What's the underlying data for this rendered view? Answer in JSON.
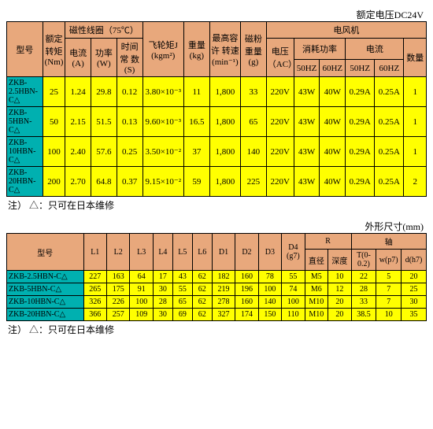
{
  "labels": {
    "rated_voltage": "额定电压DC24V",
    "dims_title": "外形尺寸(mm)",
    "note1": "注） △：只可在日本维修",
    "note2": "注） △：只可在日本维修"
  },
  "t1": {
    "h": {
      "model": "型号",
      "torque": "额定 转矩 (Nm)",
      "coil": "磁性线圈（75℃）",
      "current": "电流 (A)",
      "power": "功率 (W)",
      "tc": "时间常 数 (S)",
      "flywheel": "飞轮矩J (kgm²)",
      "weight": "重量 (kg)",
      "maxspeed": "最高容 许 转速 (min⁻¹)",
      "powder": "磁粉 重量 (g)",
      "fan": "电风机",
      "voltage": "电压 （AC）",
      "pcons": "消耗功率",
      "fcurrent": "电流",
      "hz50": "50HZ",
      "hz60": "60HZ",
      "qty": "数量"
    },
    "rows": [
      {
        "model": "ZKB-2.5HBN-C△",
        "torque": "25",
        "cur": "1.24",
        "pow": "29.8",
        "tc": "0.12",
        "fw": "3.80×10⁻³",
        "wt": "11",
        "speed": "1,800",
        "pd": "33",
        "v": "220V",
        "p50": "43W",
        "p60": "40W",
        "c50": "0.29A",
        "c60": "0.25A",
        "q": "1"
      },
      {
        "model": "ZKB-5HBN-C△",
        "torque": "50",
        "cur": "2.15",
        "pow": "51.5",
        "tc": "0.13",
        "fw": "9.60×10⁻³",
        "wt": "16.5",
        "speed": "1,800",
        "pd": "65",
        "v": "220V",
        "p50": "43W",
        "p60": "40W",
        "c50": "0.29A",
        "c60": "0.25A",
        "q": "1"
      },
      {
        "model": "ZKB-10HBN-C△",
        "torque": "100",
        "cur": "2.40",
        "pow": "57.6",
        "tc": "0.25",
        "fw": "3.50×10⁻²",
        "wt": "37",
        "speed": "1,800",
        "pd": "140",
        "v": "220V",
        "p50": "43W",
        "p60": "40W",
        "c50": "0.29A",
        "c60": "0.25A",
        "q": "1"
      },
      {
        "model": "ZKB-20HBN-C△",
        "torque": "200",
        "cur": "2.70",
        "pow": "64.8",
        "tc": "0.37",
        "fw": "9.15×10⁻²",
        "wt": "59",
        "speed": "1,800",
        "pd": "225",
        "v": "220V",
        "p50": "43W",
        "p60": "40W",
        "c50": "0.29A",
        "c60": "0.25A",
        "q": "2"
      }
    ]
  },
  "t2": {
    "h": {
      "model": "型号",
      "L1": "L1",
      "L2": "L2",
      "L3": "L3",
      "L4": "L4",
      "L5": "L5",
      "L6": "L6",
      "D1": "D1",
      "D2": "D2",
      "D3": "D3",
      "D4": "D4 (g7)",
      "R": "R",
      "dia": "直径",
      "dep": "深度",
      "shaft": "轴",
      "T": "T(0-0.2)",
      "w": "w(p7)",
      "d": "d(h7)"
    },
    "rows": [
      {
        "model": "ZKB-2.5HBN-C△",
        "L1": "227",
        "L2": "163",
        "L3": "64",
        "L4": "17",
        "L5": "43",
        "L6": "62",
        "D1": "182",
        "D2": "160",
        "D3": "78",
        "D4": "55",
        "dia": "M5",
        "dep": "10",
        "T": "22",
        "w": "5",
        "d": "20"
      },
      {
        "model": "ZKB-5HBN-C△",
        "L1": "265",
        "L2": "175",
        "L3": "91",
        "L4": "30",
        "L5": "55",
        "L6": "62",
        "D1": "219",
        "D2": "196",
        "D3": "100",
        "D4": "74",
        "dia": "M6",
        "dep": "12",
        "T": "28",
        "w": "7",
        "d": "25"
      },
      {
        "model": "ZKB-10HBN-C△",
        "L1": "326",
        "L2": "226",
        "L3": "100",
        "L4": "28",
        "L5": "65",
        "L6": "62",
        "D1": "278",
        "D2": "160",
        "D3": "140",
        "D4": "100",
        "dia": "M10",
        "dep": "20",
        "T": "33",
        "w": "7",
        "d": "30"
      },
      {
        "model": "ZKB-20HBN-C△",
        "L1": "366",
        "L2": "257",
        "L3": "109",
        "L4": "30",
        "L5": "69",
        "L6": "62",
        "D1": "327",
        "D2": "174",
        "D3": "150",
        "D4": "110",
        "dia": "M10",
        "dep": "20",
        "T": "38.5",
        "w": "10",
        "d": "35"
      }
    ]
  }
}
